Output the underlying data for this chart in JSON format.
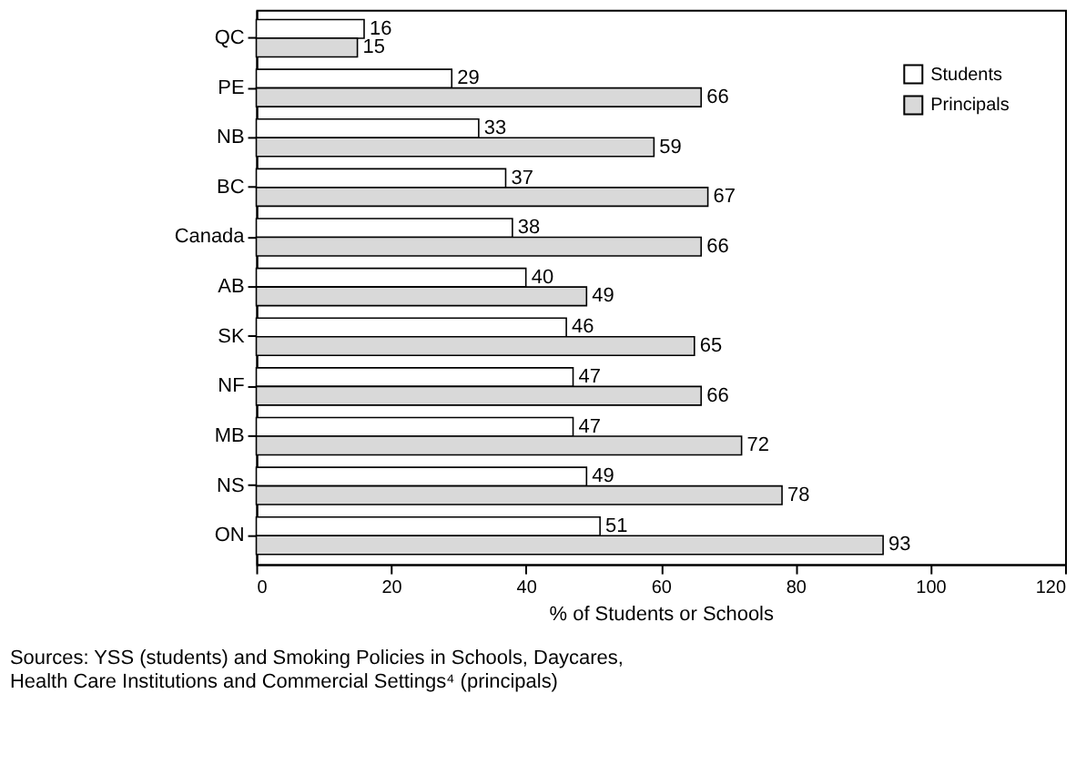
{
  "chart_data": {
    "type": "bar",
    "orientation": "horizontal",
    "categories": [
      "QC",
      "PE",
      "NB",
      "BC",
      "Canada",
      "AB",
      "SK",
      "NF",
      "MB",
      "NS",
      "ON"
    ],
    "series": [
      {
        "name": "Students",
        "color": "#ffffff",
        "values": [
          16,
          29,
          33,
          37,
          38,
          40,
          46,
          47,
          47,
          49,
          51
        ]
      },
      {
        "name": "Principals",
        "color": "#d9d9d9",
        "values": [
          15,
          66,
          59,
          67,
          66,
          49,
          65,
          66,
          72,
          78,
          93
        ]
      }
    ],
    "xlabel": "% of Students or Schools",
    "xlim": [
      0,
      120
    ],
    "xticks": [
      0,
      20,
      40,
      60,
      80,
      100,
      120
    ],
    "data_labels": true,
    "grid": false,
    "legend": "top right",
    "annotations": [
      "Sources: YSS (students) and Smoking Policies in Schools, Daycares,\nHealth Care Institutions and Commercial Settings⁴ (principals)"
    ]
  }
}
